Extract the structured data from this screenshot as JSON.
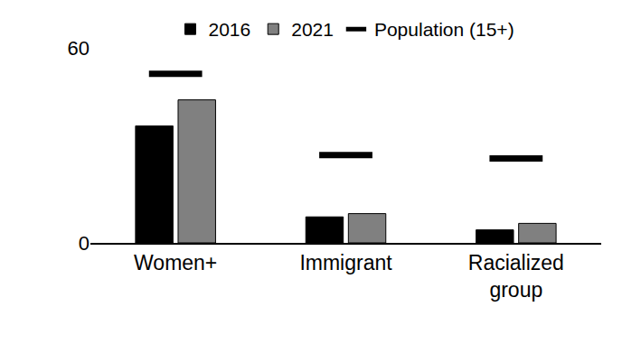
{
  "chart_data": {
    "type": "bar",
    "categories": [
      "Women+",
      "Immigrant",
      "Racialized group"
    ],
    "series": [
      {
        "name": "2016",
        "color": "#000000",
        "values": [
          36,
          8,
          4
        ]
      },
      {
        "name": "2021",
        "color": "#808080",
        "values": [
          44,
          9,
          6
        ]
      },
      {
        "name": "Population (15+)",
        "type": "scatter",
        "marker": "dash",
        "color": "#000000",
        "values": [
          52,
          27,
          26
        ]
      }
    ],
    "ylim": [
      0,
      60
    ],
    "yticks": [
      0,
      60
    ],
    "grid": false,
    "legend": "top"
  }
}
